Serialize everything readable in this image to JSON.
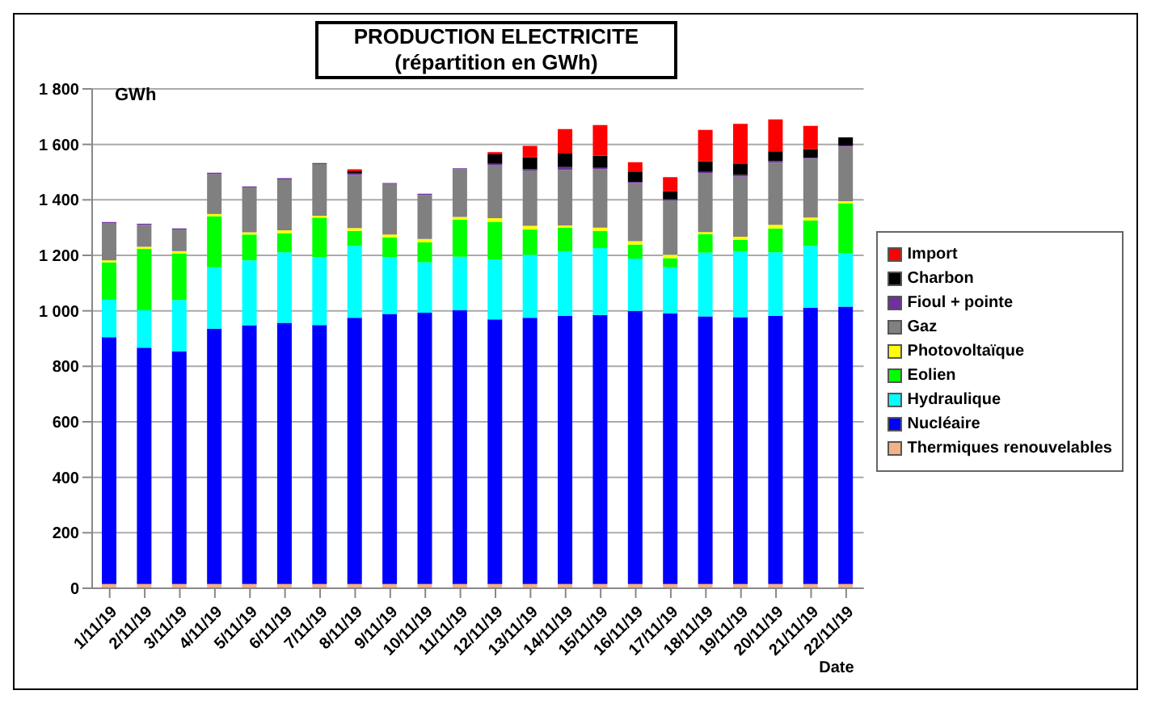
{
  "chart_data": {
    "type": "bar",
    "title": "PRODUCTION ELECTRICITE",
    "subtitle": "(répartition en GWh)",
    "xlabel": "Date",
    "ylabel": "GWh",
    "categories": [
      "1/11/19",
      "2/11/19",
      "3/11/19",
      "4/11/19",
      "5/11/19",
      "6/11/19",
      "7/11/19",
      "8/11/19",
      "9/11/19",
      "10/11/19",
      "11/11/19",
      "12/11/19",
      "13/11/19",
      "14/11/19",
      "15/11/19",
      "16/11/19",
      "17/11/19",
      "18/11/19",
      "19/11/19",
      "20/11/19",
      "21/11/19",
      "22/11/19"
    ],
    "stacked": true,
    "series": [
      {
        "name": "Thermiques renouvelables",
        "color": "#f4b183",
        "values": [
          15,
          15,
          15,
          15,
          15,
          15,
          15,
          15,
          15,
          15,
          15,
          15,
          15,
          15,
          15,
          15,
          15,
          15,
          15,
          15,
          15,
          15
        ]
      },
      {
        "name": "Nucléaire",
        "color": "#0000ff",
        "values": [
          890,
          852,
          839,
          921,
          933,
          942,
          934,
          960,
          974,
          978,
          987,
          954,
          960,
          967,
          970,
          985,
          975,
          965,
          962,
          967,
          996,
          1000
        ]
      },
      {
        "name": "Hydraulique",
        "color": "#00ffff",
        "values": [
          135,
          135,
          185,
          221,
          234,
          254,
          244,
          259,
          204,
          182,
          193,
          216,
          227,
          233,
          241,
          188,
          167,
          230,
          238,
          229,
          223,
          192
        ]
      },
      {
        "name": "Eolien",
        "color": "#00ff00",
        "values": [
          135,
          221,
          168,
          184,
          93,
          69,
          143,
          54,
          71,
          72,
          134,
          136,
          91,
          85,
          62,
          51,
          33,
          67,
          41,
          86,
          92,
          181
        ]
      },
      {
        "name": "Photovoltaïque",
        "color": "#ffff00",
        "values": [
          7,
          8,
          8,
          8,
          8,
          10,
          7,
          10,
          11,
          12,
          9,
          13,
          13,
          8,
          12,
          12,
          12,
          7,
          11,
          13,
          10,
          7
        ]
      },
      {
        "name": "Gaz",
        "color": "#808080",
        "values": [
          133,
          79,
          78,
          144,
          161,
          184,
          186,
          192,
          182,
          159,
          172,
          192,
          200,
          200,
          210,
          210,
          196,
          213,
          217,
          224,
          213,
          197
        ]
      },
      {
        "name": "Fioul + pointe",
        "color": "#7030a0",
        "values": [
          5,
          4,
          4,
          5,
          4,
          4,
          4,
          5,
          4,
          4,
          4,
          4,
          4,
          10,
          5,
          4,
          4,
          4,
          6,
          6,
          3,
          4
        ]
      },
      {
        "name": "Charbon",
        "color": "#000000",
        "values": [
          0,
          0,
          0,
          0,
          0,
          0,
          0,
          8,
          0,
          0,
          0,
          34,
          44,
          49,
          44,
          37,
          29,
          38,
          39,
          35,
          31,
          29
        ]
      },
      {
        "name": "Import",
        "color": "#ff0000",
        "values": [
          0,
          0,
          0,
          0,
          0,
          0,
          0,
          7,
          0,
          0,
          0,
          8,
          41,
          88,
          111,
          34,
          51,
          113,
          145,
          115,
          84,
          0
        ]
      }
    ],
    "ylim": [
      0,
      1800
    ],
    "yticks": [
      0,
      200,
      400,
      600,
      800,
      {
        "value": 1000,
        "label": "1 000"
      },
      {
        "value": 1200,
        "label": "1 200"
      },
      {
        "value": 1400,
        "label": "1 400"
      },
      {
        "value": 1600,
        "label": "1 600"
      },
      {
        "value": 1800,
        "label": "1 800"
      }
    ],
    "grid": "y",
    "legend": "right"
  }
}
